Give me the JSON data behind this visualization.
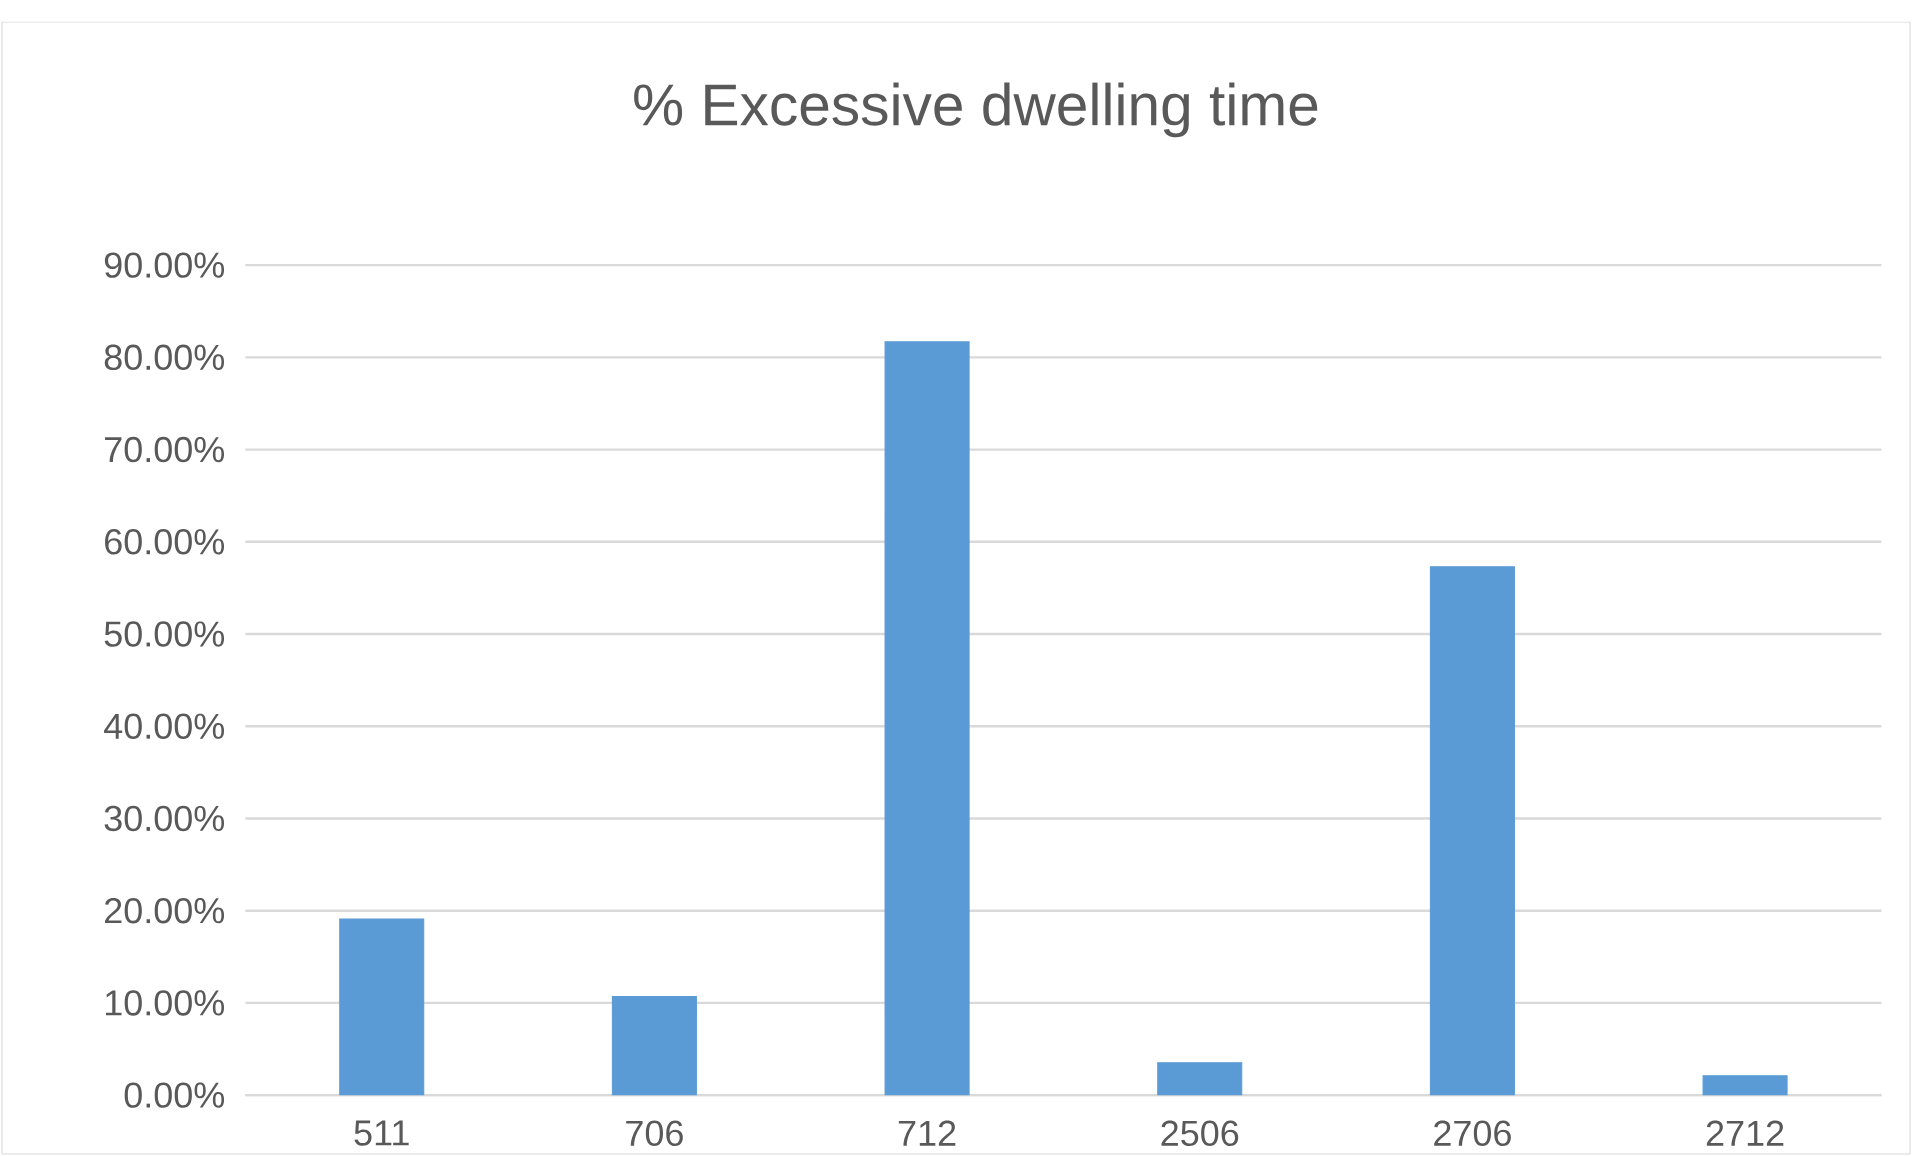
{
  "chart_data": {
    "type": "bar",
    "title": "% Excessive dwelling time",
    "categories": [
      "511",
      "706",
      "712",
      "2506",
      "2706",
      "2712"
    ],
    "values": [
      19.1,
      10.7,
      81.7,
      3.5,
      57.3,
      2.1
    ],
    "color": "#5b9bd5",
    "ylim": [
      0,
      90
    ],
    "yticks": [
      {
        "value": 0,
        "label": "0.00%"
      },
      {
        "value": 10,
        "label": "10.00%"
      },
      {
        "value": 20,
        "label": "20.00%"
      },
      {
        "value": 30,
        "label": "30.00%"
      },
      {
        "value": 40,
        "label": "40.00%"
      },
      {
        "value": 50,
        "label": "50.00%"
      },
      {
        "value": 60,
        "label": "60.00%"
      },
      {
        "value": 70,
        "label": "70.00%"
      },
      {
        "value": 80,
        "label": "80.00%"
      },
      {
        "value": 90,
        "label": "90.00%"
      }
    ],
    "grid": "y"
  }
}
